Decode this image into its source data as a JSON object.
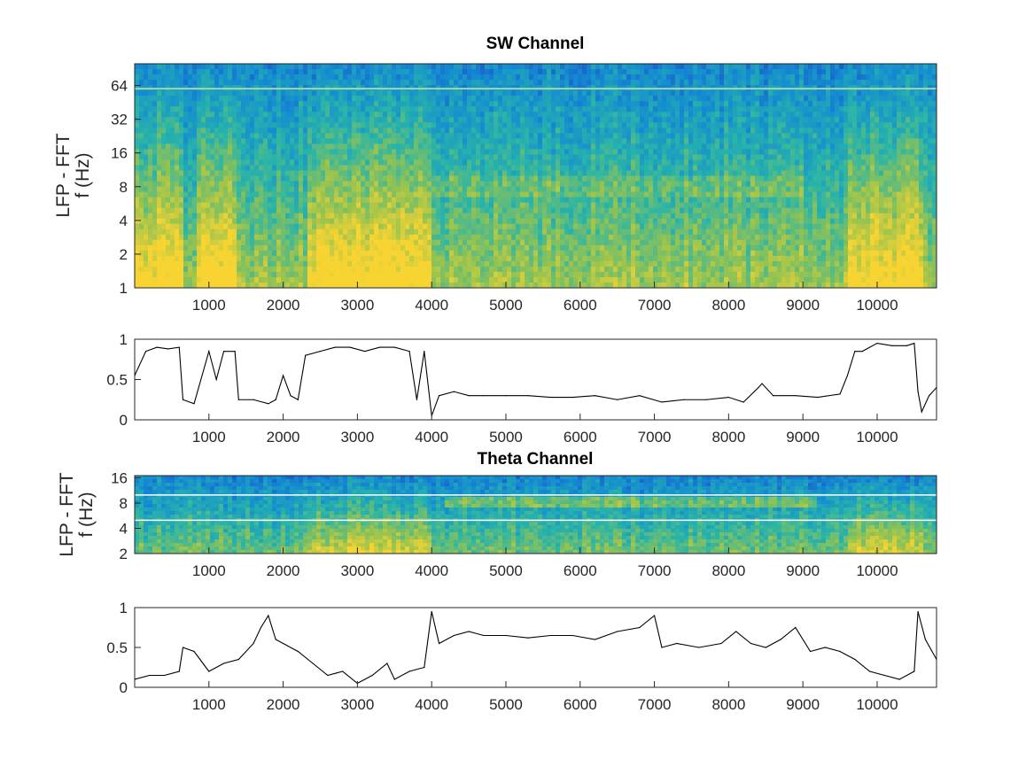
{
  "chart_data": [
    {
      "type": "heatmap",
      "title": "SW Channel",
      "ylabel_lines": [
        "LFP - FFT",
        "f (Hz)"
      ],
      "y_scale": "log2",
      "ylim": [
        1,
        100
      ],
      "yticks": [
        1,
        2,
        4,
        8,
        16,
        32,
        64
      ],
      "ytick_labels": [
        "1",
        "2",
        "4",
        "8",
        "16",
        "32",
        "64"
      ],
      "xlim": [
        0,
        10800
      ],
      "xticks": [
        1000,
        2000,
        3000,
        4000,
        5000,
        6000,
        7000,
        8000,
        9000,
        10000
      ],
      "xtick_labels": [
        "1000",
        "2000",
        "3000",
        "4000",
        "5000",
        "6000",
        "7000",
        "8000",
        "9000",
        "10000"
      ],
      "colormap": "parula",
      "colors": {
        "low": "#1d7bc9",
        "mid": "#3fb69a",
        "high": "#f0d23a"
      },
      "line_artifact_hz": 60,
      "high_power_intervals": [
        [
          0,
          650
        ],
        [
          850,
          1400
        ],
        [
          2300,
          4000
        ],
        [
          9600,
          10600
        ]
      ]
    },
    {
      "type": "line",
      "ylim": [
        0,
        1
      ],
      "yticks": [
        0,
        0.5,
        1
      ],
      "ytick_labels": [
        "0",
        "0.5",
        "1"
      ],
      "xlim": [
        0,
        10800
      ],
      "xticks": [
        1000,
        2000,
        3000,
        4000,
        5000,
        6000,
        7000,
        8000,
        9000,
        10000
      ],
      "xtick_labels": [
        "1000",
        "2000",
        "3000",
        "4000",
        "5000",
        "6000",
        "7000",
        "8000",
        "9000",
        "10000"
      ],
      "line_color": "#000000",
      "series": [
        {
          "x": [
            0,
            150,
            300,
            450,
            600,
            650,
            800,
            1000,
            1100,
            1200,
            1350,
            1400,
            1600,
            1800,
            1900,
            2000,
            2100,
            2200,
            2300,
            2500,
            2700,
            2900,
            3100,
            3300,
            3500,
            3700,
            3800,
            3900,
            4000,
            4100,
            4300,
            4500,
            4700,
            5000,
            5300,
            5600,
            5900,
            6200,
            6500,
            6800,
            7100,
            7400,
            7700,
            8000,
            8200,
            8400,
            8450,
            8600,
            8900,
            9200,
            9500,
            9600,
            9700,
            9800,
            10000,
            10200,
            10400,
            10500,
            10550,
            10600,
            10700,
            10800
          ],
          "y": [
            0.55,
            0.85,
            0.9,
            0.88,
            0.9,
            0.25,
            0.2,
            0.85,
            0.5,
            0.85,
            0.85,
            0.25,
            0.25,
            0.2,
            0.25,
            0.55,
            0.3,
            0.25,
            0.8,
            0.85,
            0.9,
            0.9,
            0.85,
            0.9,
            0.9,
            0.85,
            0.25,
            0.85,
            0.05,
            0.3,
            0.35,
            0.3,
            0.3,
            0.3,
            0.3,
            0.28,
            0.28,
            0.3,
            0.25,
            0.3,
            0.22,
            0.25,
            0.25,
            0.28,
            0.22,
            0.4,
            0.45,
            0.3,
            0.3,
            0.28,
            0.32,
            0.55,
            0.85,
            0.85,
            0.95,
            0.92,
            0.92,
            0.95,
            0.35,
            0.1,
            0.3,
            0.4
          ]
        }
      ]
    },
    {
      "type": "heatmap",
      "title": "Theta Channel",
      "ylabel_lines": [
        "LFP - FFT",
        "f (Hz)"
      ],
      "y_scale": "log2",
      "ylim": [
        2,
        17
      ],
      "yticks": [
        2,
        4,
        8,
        16
      ],
      "ytick_labels": [
        "2",
        "4",
        "8",
        "16"
      ],
      "xlim": [
        0,
        10800
      ],
      "xticks": [
        1000,
        2000,
        3000,
        4000,
        5000,
        6000,
        7000,
        8000,
        9000,
        10000
      ],
      "xtick_labels": [
        "1000",
        "2000",
        "3000",
        "4000",
        "5000",
        "6000",
        "7000",
        "8000",
        "9000",
        "10000"
      ],
      "colormap": "parula",
      "colors": {
        "low": "#1d7bc9",
        "mid": "#3fb69a",
        "high": "#f0d23a"
      },
      "band_lines_hz": [
        5,
        10
      ],
      "theta_band_interval": [
        4200,
        9200
      ]
    },
    {
      "type": "line",
      "ylim": [
        0,
        1
      ],
      "yticks": [
        0,
        0.5,
        1
      ],
      "ytick_labels": [
        "0",
        "0.5",
        "1"
      ],
      "xlim": [
        0,
        10800
      ],
      "xticks": [
        1000,
        2000,
        3000,
        4000,
        5000,
        6000,
        7000,
        8000,
        9000,
        10000
      ],
      "xtick_labels": [
        "1000",
        "2000",
        "3000",
        "4000",
        "5000",
        "6000",
        "7000",
        "8000",
        "9000",
        "10000"
      ],
      "line_color": "#000000",
      "series": [
        {
          "x": [
            0,
            200,
            400,
            600,
            650,
            800,
            1000,
            1200,
            1400,
            1600,
            1700,
            1800,
            1900,
            2000,
            2200,
            2400,
            2600,
            2800,
            3000,
            3200,
            3400,
            3500,
            3700,
            3900,
            4000,
            4100,
            4300,
            4500,
            4700,
            5000,
            5300,
            5600,
            5900,
            6200,
            6500,
            6800,
            7000,
            7100,
            7300,
            7600,
            7900,
            8100,
            8300,
            8500,
            8700,
            8900,
            9100,
            9300,
            9500,
            9700,
            9900,
            10100,
            10300,
            10500,
            10550,
            10650,
            10800
          ],
          "y": [
            0.1,
            0.15,
            0.15,
            0.2,
            0.5,
            0.45,
            0.2,
            0.3,
            0.35,
            0.55,
            0.75,
            0.9,
            0.6,
            0.55,
            0.45,
            0.3,
            0.15,
            0.2,
            0.05,
            0.15,
            0.3,
            0.1,
            0.2,
            0.25,
            0.95,
            0.55,
            0.65,
            0.7,
            0.65,
            0.65,
            0.62,
            0.65,
            0.65,
            0.6,
            0.7,
            0.75,
            0.9,
            0.5,
            0.55,
            0.5,
            0.55,
            0.7,
            0.55,
            0.5,
            0.6,
            0.75,
            0.45,
            0.5,
            0.45,
            0.35,
            0.2,
            0.15,
            0.1,
            0.2,
            0.95,
            0.6,
            0.35
          ]
        }
      ]
    }
  ]
}
